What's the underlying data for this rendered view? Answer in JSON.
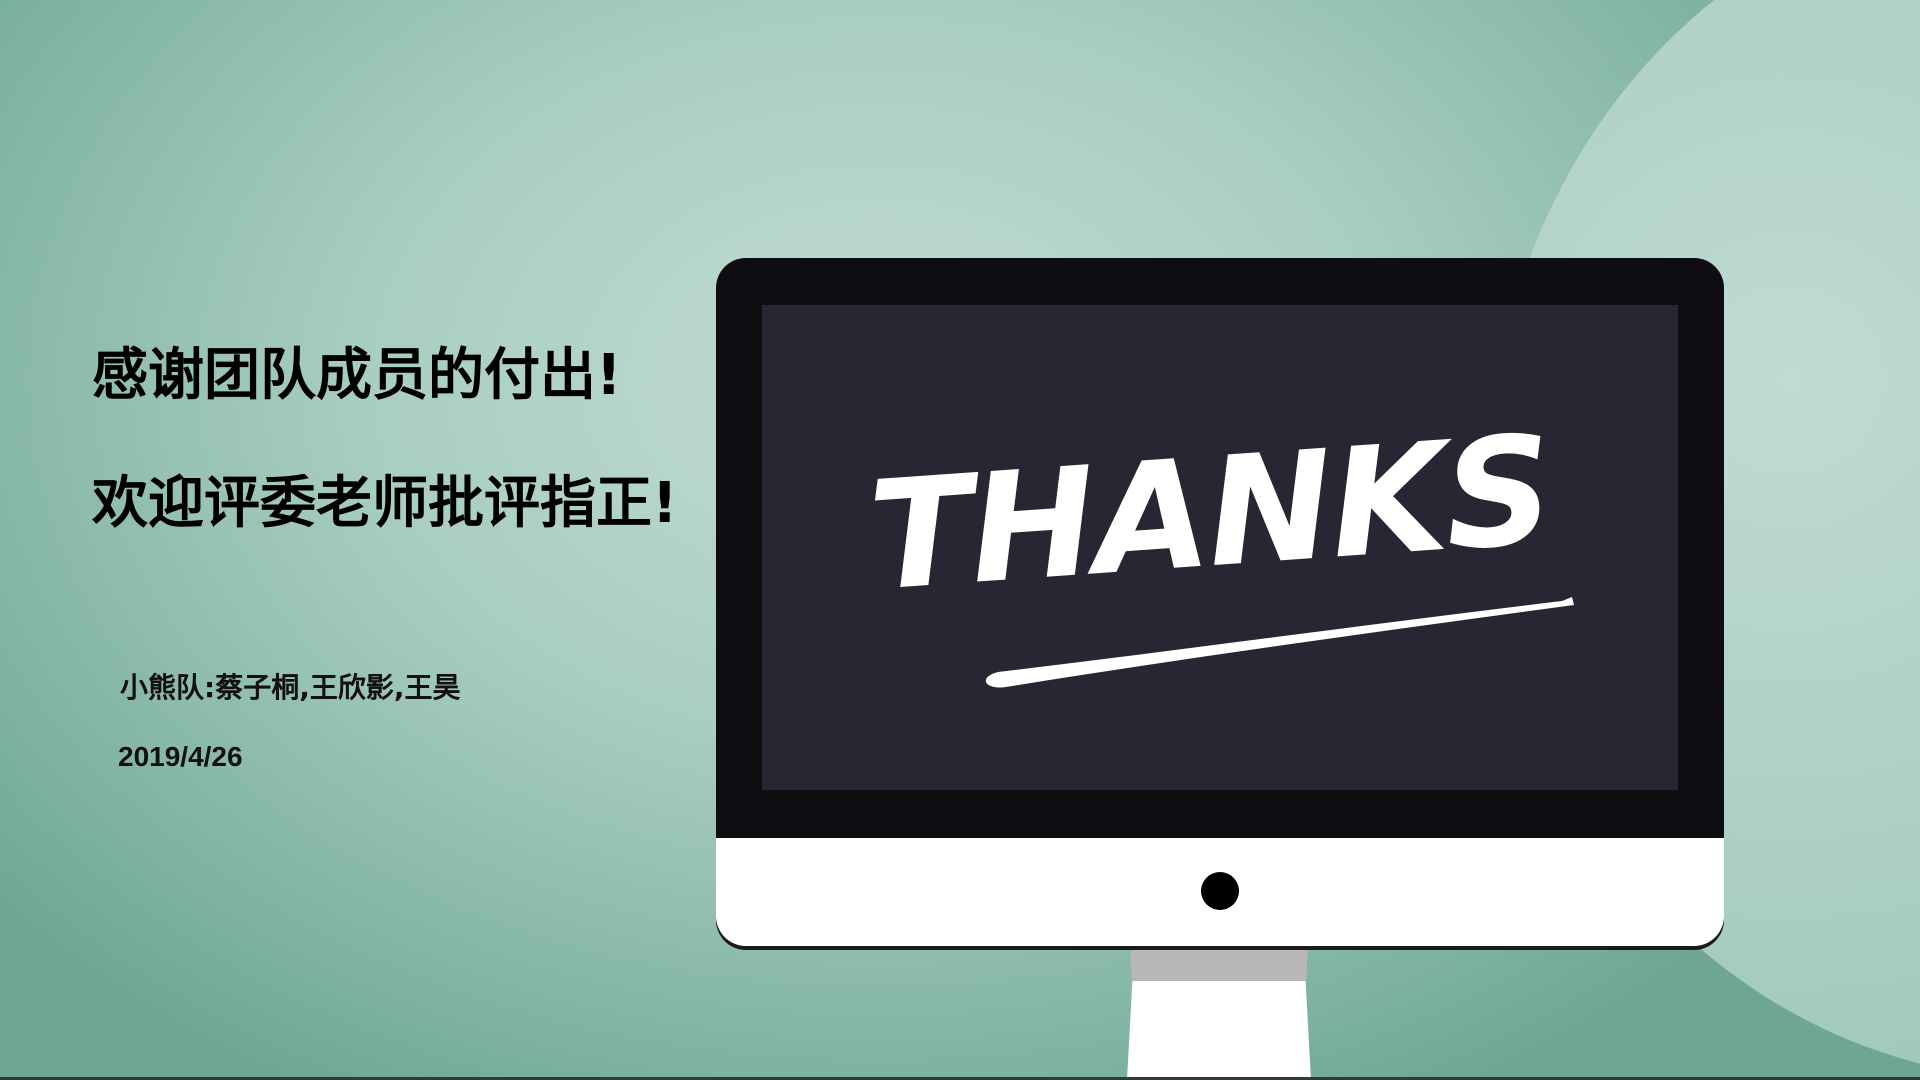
{
  "slide": {
    "heading_line_1": "感谢团队成员的付出!",
    "heading_line_2": "欢迎评委老师批评指正!",
    "team": "小熊队:蔡子桐,王欣影,王昊",
    "date": "2019/4/26"
  },
  "monitor": {
    "screen_text": "THANKS"
  },
  "colors": {
    "background": "#a8cdc1",
    "screen": "#282633",
    "bezel": "#0e0d11",
    "chin": "#ffffff",
    "text": "#000000"
  }
}
